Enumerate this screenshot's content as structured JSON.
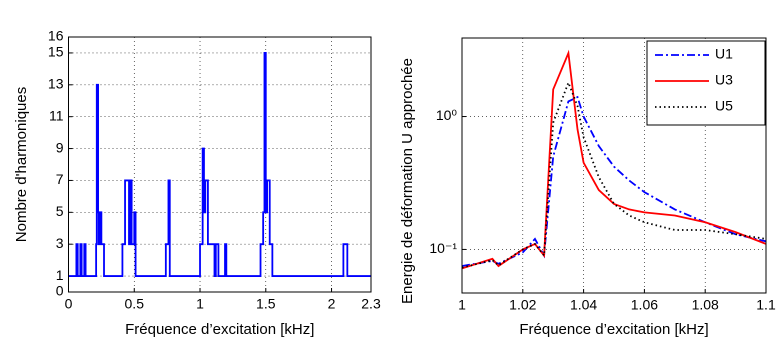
{
  "chart_data": [
    {
      "type": "line",
      "xlabel": "Fréquence d’excitation [kHz]",
      "ylabel": "Nombre d'harmoniques",
      "x": [
        0,
        0.06,
        0.06,
        0.07,
        0.07,
        0.09,
        0.09,
        0.1,
        0.1,
        0.12,
        0.12,
        0.13,
        0.13,
        0.21,
        0.21,
        0.215,
        0.215,
        0.225,
        0.225,
        0.23,
        0.23,
        0.24,
        0.24,
        0.25,
        0.25,
        0.27,
        0.27,
        0.41,
        0.41,
        0.43,
        0.43,
        0.46,
        0.46,
        0.47,
        0.47,
        0.48,
        0.48,
        0.5,
        0.5,
        0.51,
        0.51,
        0.74,
        0.74,
        0.76,
        0.76,
        0.77,
        0.77,
        1.0,
        1.0,
        1.02,
        1.02,
        1.03,
        1.03,
        1.04,
        1.04,
        1.06,
        1.06,
        1.11,
        1.11,
        1.12,
        1.12,
        1.14,
        1.14,
        1.19,
        1.19,
        1.2,
        1.2,
        1.46,
        1.46,
        1.48,
        1.48,
        1.49,
        1.49,
        1.5,
        1.5,
        1.51,
        1.51,
        1.53,
        1.53,
        1.55,
        1.55,
        2.09,
        2.09,
        2.12,
        2.12,
        2.3
      ],
      "series": [
        {
          "color": "#0000ff",
          "linestyle": "-",
          "values": [
            1,
            1,
            3,
            3,
            1,
            1,
            3,
            3,
            1,
            1,
            3,
            3,
            1,
            1,
            3,
            3,
            13,
            13,
            5,
            5,
            3,
            3,
            5,
            5,
            3,
            3,
            1,
            1,
            3,
            3,
            7,
            7,
            3,
            3,
            7,
            7,
            3,
            3,
            5,
            5,
            1,
            1,
            3,
            3,
            7,
            7,
            1,
            1,
            3,
            3,
            9,
            9,
            5,
            5,
            7,
            7,
            3,
            3,
            1,
            1,
            3,
            3,
            1,
            1,
            3,
            3,
            1,
            1,
            3,
            3,
            5,
            5,
            15,
            15,
            5,
            5,
            7,
            7,
            3,
            3,
            1,
            1,
            3,
            3,
            1,
            1
          ]
        }
      ],
      "xlim": [
        0,
        2.3
      ],
      "xticks": [
        0,
        0.5,
        1,
        1.5,
        2,
        2.3
      ],
      "ylim": [
        0,
        16
      ],
      "yticks": [
        0,
        1,
        3,
        5,
        7,
        9,
        11,
        13,
        15,
        16
      ],
      "grid": true,
      "log_y": false
    },
    {
      "type": "line",
      "xlabel": "Fréquence d’excitation [kHz]",
      "ylabel": "Energie de déformation U approchée",
      "x": [
        1,
        1.01,
        1.012,
        1.02,
        1.024,
        1.027,
        1.03,
        1.035,
        1.038,
        1.04,
        1.045,
        1.05,
        1.055,
        1.06,
        1.07,
        1.08,
        1.09,
        1.1
      ],
      "series": [
        {
          "name": "U1",
          "color": "#0000ff",
          "linestyle": "-.",
          "values": [
            0.075,
            0.082,
            0.078,
            0.095,
            0.12,
            0.09,
            0.5,
            1.3,
            1.4,
            1.0,
            0.6,
            0.42,
            0.33,
            0.27,
            0.2,
            0.16,
            0.13,
            0.115
          ]
        },
        {
          "name": "U3",
          "color": "#ff0000",
          "linestyle": "-",
          "values": [
            0.072,
            0.085,
            0.075,
            0.1,
            0.11,
            0.09,
            1.6,
            3.0,
            0.8,
            0.45,
            0.28,
            0.22,
            0.2,
            0.19,
            0.18,
            0.16,
            0.135,
            0.11
          ]
        },
        {
          "name": "U5",
          "color": "#000000",
          "linestyle": ":",
          "values": [
            0.073,
            0.083,
            0.076,
            0.1,
            0.11,
            0.09,
            0.9,
            1.8,
            1.2,
            0.7,
            0.35,
            0.22,
            0.18,
            0.16,
            0.14,
            0.14,
            0.13,
            0.12
          ]
        }
      ],
      "xlim": [
        1,
        1.1
      ],
      "xticks": [
        1,
        1.02,
        1.04,
        1.06,
        1.08,
        1.1
      ],
      "ylim": [
        0.047,
        3.9
      ],
      "yticks": [
        {
          "value": 0.1,
          "label": "10⁻¹"
        },
        {
          "value": 1,
          "label": "10⁰"
        }
      ],
      "grid": true,
      "log_y": true,
      "legend": "upper right"
    }
  ]
}
